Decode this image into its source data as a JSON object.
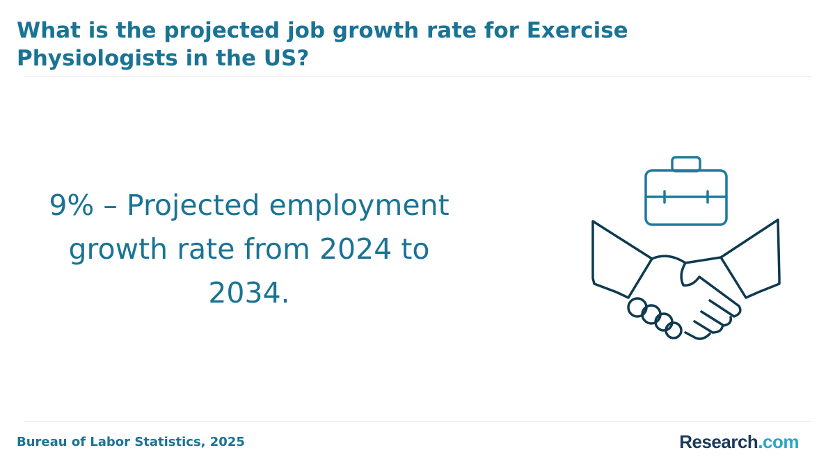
{
  "header": {
    "title": "What is the projected job growth rate for Exercise Physiologists in the US?"
  },
  "body": {
    "statement": "9% – Projected employment growth rate from 2024 to 2034."
  },
  "footer": {
    "source": "Bureau of Labor Statistics, 2025",
    "logo": {
      "brand": "Research",
      "suffix": ".com"
    }
  }
}
